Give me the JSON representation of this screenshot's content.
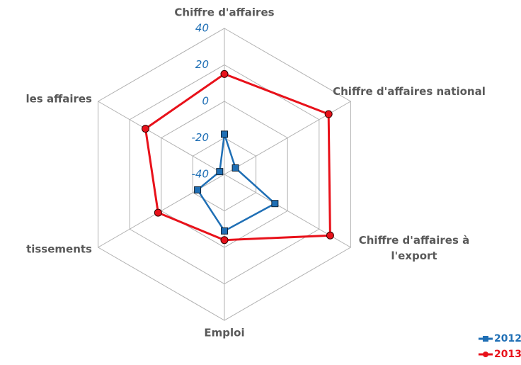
{
  "chart_data": {
    "type": "radar",
    "categories": [
      "Chiffre d'affaires",
      "Chiffre d'affaires national",
      "Chiffre d'affaires à l'export",
      "Emploi",
      "tissements",
      "les affaires"
    ],
    "series": [
      {
        "name": "2012",
        "color": "#1f6fb5",
        "values": [
          -18,
          -33,
          -8,
          -9,
          -23,
          -37
        ]
      },
      {
        "name": "2013",
        "color": "#e8111a",
        "values": [
          15,
          26,
          27,
          -4,
          2,
          10
        ]
      }
    ],
    "ylim": [
      -40,
      40
    ],
    "yticks": [
      -40,
      -20,
      0,
      20,
      40
    ],
    "grid": true
  }
}
